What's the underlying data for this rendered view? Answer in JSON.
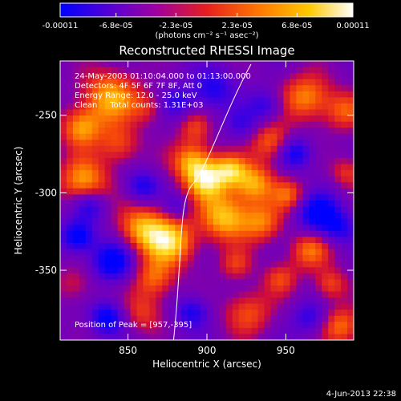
{
  "chart_data": {
    "type": "heatmap",
    "title": "Reconstructed RHESSI Image",
    "xlabel": "Heliocentric X (arcsec)",
    "ylabel": "Heliocentric Y (arcsec)",
    "xlim": [
      807,
      993
    ],
    "ylim": [
      -395,
      -215
    ],
    "x_ticks": [
      850,
      900,
      950
    ],
    "y_ticks": [
      -250,
      -300,
      -350
    ],
    "colorbar": {
      "range": [
        -0.00011,
        0.00011
      ],
      "tick_labels": [
        "-0.00011",
        "-6.8e-05",
        "-2.3e-05",
        "2.3e-05",
        "6.8e-05",
        "0.00011"
      ],
      "tick_values": [
        -0.00011,
        -6.8e-05,
        -2.3e-05,
        2.3e-05,
        6.8e-05,
        0.00011
      ],
      "unit_label": "(photons cm⁻² s⁻¹ asec⁻²)",
      "colormap": [
        "#0000ff",
        "#6a00c8",
        "#b40096",
        "#e61e1e",
        "#ff7800",
        "#ffc800",
        "#ffffff"
      ]
    },
    "annotations": [
      "24-May-2003 01:10:04.000 to 01:13:00.000",
      "Detectors: 4F 5F 6F 7F 8F, Att 0",
      "Energy Range: 12.0 - 25.0 keV",
      "Clean     Total counts: 1.31E+03"
    ],
    "peak_label": "Position of Peak = [957,-395]",
    "limb_line_color": "#ffffff"
  },
  "footer": {
    "timestamp": "4-Jun-2013 22:38"
  }
}
